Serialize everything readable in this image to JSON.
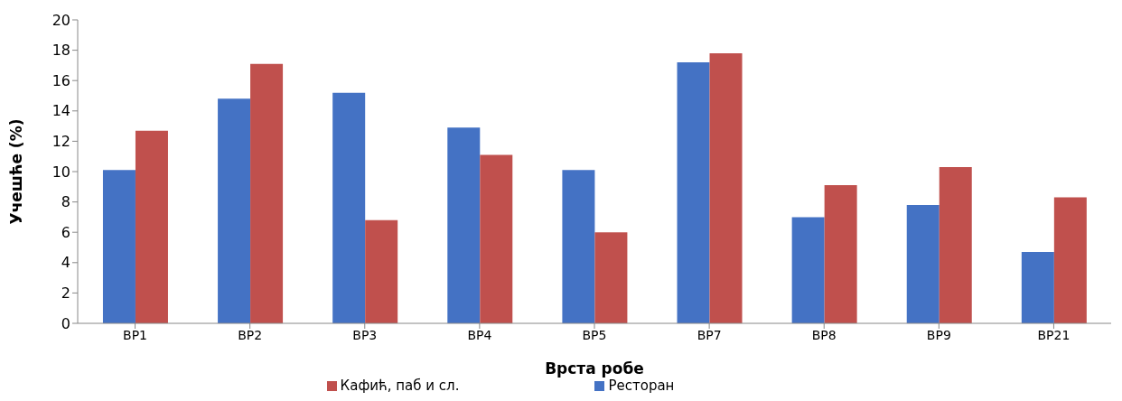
{
  "chart_data": {
    "type": "bar",
    "xlabel": "Врста робе",
    "ylabel": "Учешће (%)",
    "categories": [
      "ВР1",
      "ВР2",
      "ВР3",
      "ВР4",
      "ВР5",
      "ВР7",
      "ВР8",
      "ВР9",
      "ВР21"
    ],
    "series": [
      {
        "name": "Ресторан",
        "color": "#4472c4",
        "values": [
          10.1,
          14.8,
          15.2,
          12.9,
          10.1,
          17.2,
          7.0,
          7.8,
          4.7
        ]
      },
      {
        "name": "Кафић, паб и сл.",
        "color": "#c0504d",
        "values": [
          12.7,
          17.1,
          6.8,
          11.1,
          6.0,
          17.8,
          9.1,
          10.3,
          8.3
        ]
      }
    ],
    "ylim": [
      0,
      20
    ],
    "yticks": [
      0,
      2,
      4,
      6,
      8,
      10,
      12,
      14,
      16,
      18,
      20
    ],
    "grid": false,
    "legend": "bottom"
  }
}
